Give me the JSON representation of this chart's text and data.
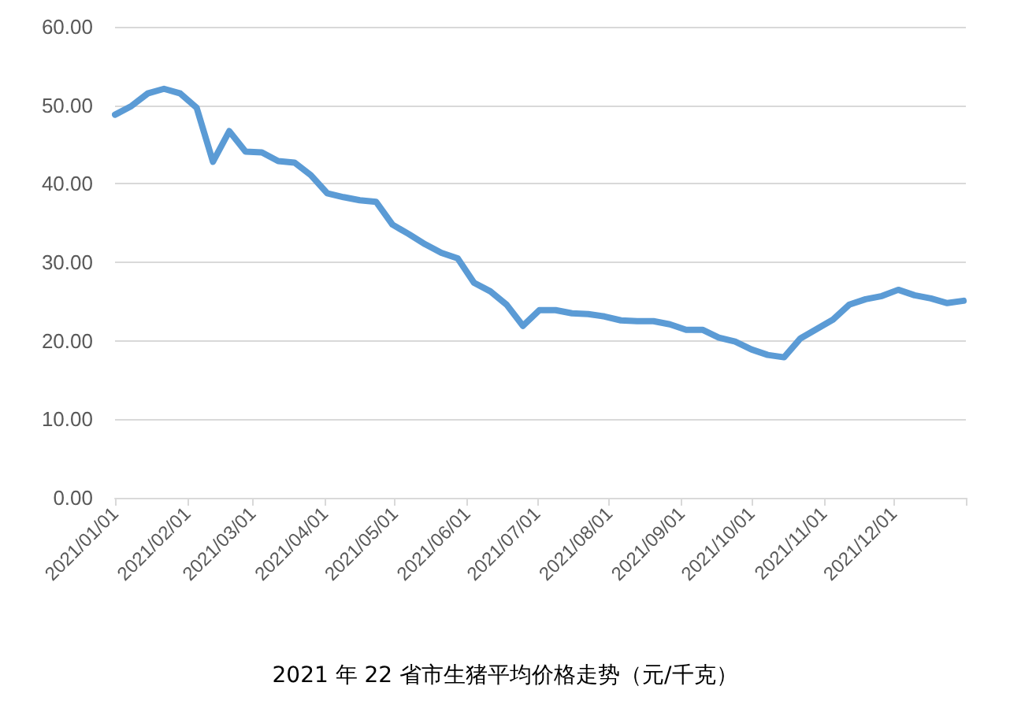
{
  "chart_data": {
    "type": "line",
    "title": "2021 年 22 省市生猪平均价格走势（元/千克）",
    "x": [
      "2021-01-01",
      "2021-01-08",
      "2021-01-15",
      "2021-01-22",
      "2021-01-29",
      "2021-02-05",
      "2021-02-12",
      "2021-02-19",
      "2021-02-26",
      "2021-03-05",
      "2021-03-12",
      "2021-03-19",
      "2021-03-26",
      "2021-04-02",
      "2021-04-09",
      "2021-04-16",
      "2021-04-23",
      "2021-04-30",
      "2021-05-07",
      "2021-05-14",
      "2021-05-21",
      "2021-05-28",
      "2021-06-04",
      "2021-06-11",
      "2021-06-18",
      "2021-06-25",
      "2021-07-02",
      "2021-07-09",
      "2021-07-16",
      "2021-07-23",
      "2021-07-30",
      "2021-08-06",
      "2021-08-13",
      "2021-08-20",
      "2021-08-27",
      "2021-09-03",
      "2021-09-10",
      "2021-09-17",
      "2021-09-24",
      "2021-10-01",
      "2021-10-08",
      "2021-10-15",
      "2021-10-22",
      "2021-10-29",
      "2021-11-05",
      "2021-11-12",
      "2021-11-19",
      "2021-11-26",
      "2021-12-03",
      "2021-12-10",
      "2021-12-17",
      "2021-12-24",
      "2021-12-31"
    ],
    "series": [
      {
        "color": "#5b9bd5",
        "values": [
          48.8,
          49.9,
          51.5,
          52.1,
          51.5,
          49.7,
          42.8,
          46.7,
          44.1,
          44.0,
          42.9,
          42.7,
          41.1,
          38.8,
          38.3,
          37.9,
          37.7,
          34.8,
          33.6,
          32.3,
          31.2,
          30.5,
          27.4,
          26.3,
          24.6,
          21.9,
          23.9,
          23.9,
          23.5,
          23.4,
          23.1,
          22.6,
          22.5,
          22.5,
          22.1,
          21.4,
          21.4,
          20.4,
          19.9,
          18.9,
          18.2,
          17.9,
          20.3,
          21.5,
          22.7,
          24.6,
          25.3,
          25.7,
          26.5,
          25.8,
          25.4,
          24.8,
          25.1
        ]
      }
    ],
    "xlim": [
      "2021-01-01",
      "2022-01-01"
    ],
    "xticks": [
      {
        "value": "2021-01-01",
        "label": "2021/01/01"
      },
      {
        "value": "2021-02-01",
        "label": "2021/02/01"
      },
      {
        "value": "2021-03-01",
        "label": "2021/03/01"
      },
      {
        "value": "2021-04-01",
        "label": "2021/04/01"
      },
      {
        "value": "2021-05-01",
        "label": "2021/05/01"
      },
      {
        "value": "2021-06-01",
        "label": "2021/06/01"
      },
      {
        "value": "2021-07-01",
        "label": "2021/07/01"
      },
      {
        "value": "2021-08-01",
        "label": "2021/08/01"
      },
      {
        "value": "2021-09-01",
        "label": "2021/09/01"
      },
      {
        "value": "2021-10-01",
        "label": "2021/10/01"
      },
      {
        "value": "2021-11-01",
        "label": "2021/11/01"
      },
      {
        "value": "2021-12-01",
        "label": "2021/12/01"
      },
      {
        "value": "2022-01-01",
        "label": null
      }
    ],
    "ylim": [
      0,
      60
    ],
    "yticks": [
      {
        "value": 0,
        "label": "0.00"
      },
      {
        "value": 10,
        "label": "10.00"
      },
      {
        "value": 20,
        "label": "20.00"
      },
      {
        "value": 30,
        "label": "30.00"
      },
      {
        "value": 40,
        "label": "40.00"
      },
      {
        "value": 50,
        "label": "50.00"
      },
      {
        "value": 60,
        "label": "60.00"
      }
    ],
    "grid": "y",
    "marker": "none",
    "line_style": "solid"
  }
}
